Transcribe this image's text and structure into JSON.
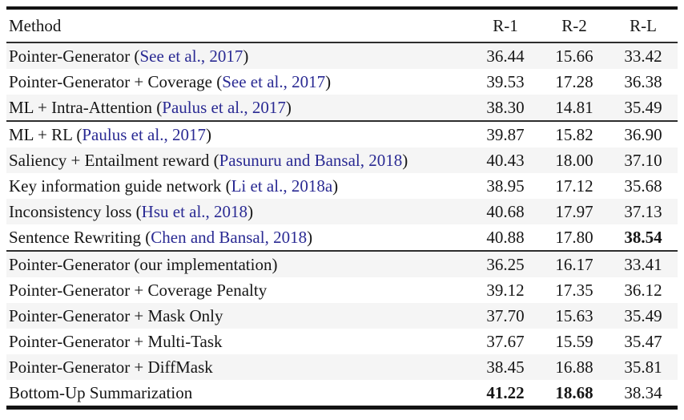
{
  "colors": {
    "text": "#161616",
    "citation_link": "#2a2a93",
    "stripe": "#f5f5f5",
    "rule": "#131313"
  },
  "table": {
    "columns": [
      "Method",
      "R-1",
      "R-2",
      "R-L"
    ],
    "groups": [
      {
        "rows": [
          {
            "method": [
              {
                "t": "Pointer-Generator ("
              },
              {
                "t": "See et al., 2017",
                "cite": true
              },
              {
                "t": ")"
              }
            ],
            "scores": [
              {
                "v": "36.44"
              },
              {
                "v": "15.66"
              },
              {
                "v": "33.42"
              }
            ]
          },
          {
            "method": [
              {
                "t": "Pointer-Generator + Coverage ("
              },
              {
                "t": "See et al., 2017",
                "cite": true
              },
              {
                "t": ")"
              }
            ],
            "scores": [
              {
                "v": "39.53"
              },
              {
                "v": "17.28"
              },
              {
                "v": "36.38"
              }
            ]
          },
          {
            "method": [
              {
                "t": "ML + Intra-Attention ("
              },
              {
                "t": "Paulus et al., 2017",
                "cite": true
              },
              {
                "t": ")"
              }
            ],
            "scores": [
              {
                "v": "38.30"
              },
              {
                "v": "14.81"
              },
              {
                "v": "35.49"
              }
            ]
          }
        ]
      },
      {
        "rows": [
          {
            "method": [
              {
                "t": "ML + RL ("
              },
              {
                "t": "Paulus et al., 2017",
                "cite": true
              },
              {
                "t": ")"
              }
            ],
            "scores": [
              {
                "v": "39.87"
              },
              {
                "v": "15.82"
              },
              {
                "v": "36.90"
              }
            ]
          },
          {
            "method": [
              {
                "t": "Saliency + Entailment reward ("
              },
              {
                "t": "Pasunuru and Bansal, 2018",
                "cite": true
              },
              {
                "t": ")"
              }
            ],
            "scores": [
              {
                "v": "40.43"
              },
              {
                "v": "18.00"
              },
              {
                "v": "37.10"
              }
            ]
          },
          {
            "method": [
              {
                "t": "Key information guide network ("
              },
              {
                "t": "Li et al., 2018a",
                "cite": true
              },
              {
                "t": ")"
              }
            ],
            "scores": [
              {
                "v": "38.95"
              },
              {
                "v": "17.12"
              },
              {
                "v": "35.68"
              }
            ]
          },
          {
            "method": [
              {
                "t": "Inconsistency loss ("
              },
              {
                "t": "Hsu et al., 2018",
                "cite": true
              },
              {
                "t": ")"
              }
            ],
            "scores": [
              {
                "v": "40.68"
              },
              {
                "v": "17.97"
              },
              {
                "v": "37.13"
              }
            ]
          },
          {
            "method": [
              {
                "t": "Sentence Rewriting ("
              },
              {
                "t": "Chen and Bansal, 2018",
                "cite": true
              },
              {
                "t": ")"
              }
            ],
            "scores": [
              {
                "v": "40.88"
              },
              {
                "v": "17.80"
              },
              {
                "v": "38.54",
                "bold": true
              }
            ]
          }
        ]
      },
      {
        "rows": [
          {
            "method": [
              {
                "t": "Pointer-Generator (our implementation)"
              }
            ],
            "scores": [
              {
                "v": "36.25"
              },
              {
                "v": "16.17"
              },
              {
                "v": "33.41"
              }
            ]
          },
          {
            "method": [
              {
                "t": "Pointer-Generator + Coverage Penalty"
              }
            ],
            "scores": [
              {
                "v": "39.12"
              },
              {
                "v": "17.35"
              },
              {
                "v": "36.12"
              }
            ]
          },
          {
            "method": [
              {
                "t": "Pointer-Generator + Mask Only"
              }
            ],
            "scores": [
              {
                "v": "37.70"
              },
              {
                "v": "15.63"
              },
              {
                "v": "35.49"
              }
            ]
          },
          {
            "method": [
              {
                "t": "Pointer-Generator + Multi-Task"
              }
            ],
            "scores": [
              {
                "v": "37.67"
              },
              {
                "v": "15.59"
              },
              {
                "v": "35.47"
              }
            ]
          },
          {
            "method": [
              {
                "t": "Pointer-Generator + DiffMask"
              }
            ],
            "scores": [
              {
                "v": "38.45"
              },
              {
                "v": "16.88"
              },
              {
                "v": "35.81"
              }
            ]
          },
          {
            "method": [
              {
                "t": "Bottom-Up Summarization"
              }
            ],
            "scores": [
              {
                "v": "41.22",
                "bold": true
              },
              {
                "v": "18.68",
                "bold": true
              },
              {
                "v": "38.34"
              }
            ]
          }
        ]
      }
    ]
  }
}
